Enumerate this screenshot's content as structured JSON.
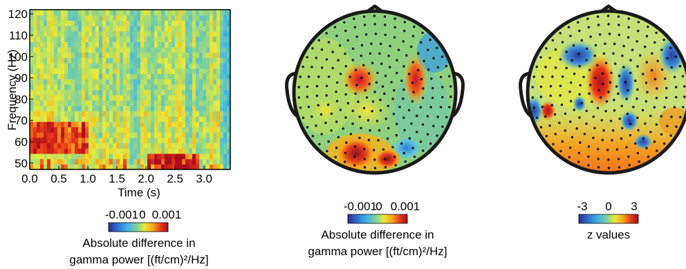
{
  "chart_data": [
    {
      "type": "heatmap",
      "panel": "time-frequency",
      "xlabel": "Time (s)",
      "ylabel": "Frequency (Hz)",
      "x_ticks": [
        "0.0",
        "0.5",
        "1.0",
        "1.5",
        "2.0",
        "2.5",
        "3.0"
      ],
      "y_ticks": [
        "50",
        "60",
        "70",
        "80",
        "90",
        "100",
        "110",
        "120"
      ],
      "xlim": [
        0.0,
        3.45
      ],
      "ylim": [
        47,
        122
      ],
      "colorbar": {
        "ticks": [
          "-0.001",
          "0",
          "0.001"
        ],
        "label_line1": "Absolute difference in",
        "label_line2": "gamma power [(ft/cm)²/Hz]"
      },
      "hotspots": [
        {
          "time_s": [
            0.0,
            1.0
          ],
          "freq_hz": [
            55,
            70
          ],
          "level": "high"
        },
        {
          "time_s": [
            2.0,
            2.9
          ],
          "freq_hz": [
            47,
            55
          ],
          "level": "high"
        }
      ]
    },
    {
      "type": "heatmap",
      "panel": "topography-difference",
      "colorbar": {
        "ticks": [
          "-0.001",
          "0",
          "0.001"
        ],
        "label_line1": "Absolute difference in",
        "label_line2": "gamma power [(ft/cm)²/Hz]"
      }
    },
    {
      "type": "heatmap",
      "panel": "topography-z",
      "colorbar": {
        "ticks": [
          "-3",
          "0",
          "3"
        ],
        "label_line1": "z values"
      }
    }
  ],
  "colors": {
    "jet_low": "#2b3a8f",
    "jet_high": "#c8102e",
    "outline": "#1a1a1a",
    "sensor_dot": "#111111"
  }
}
